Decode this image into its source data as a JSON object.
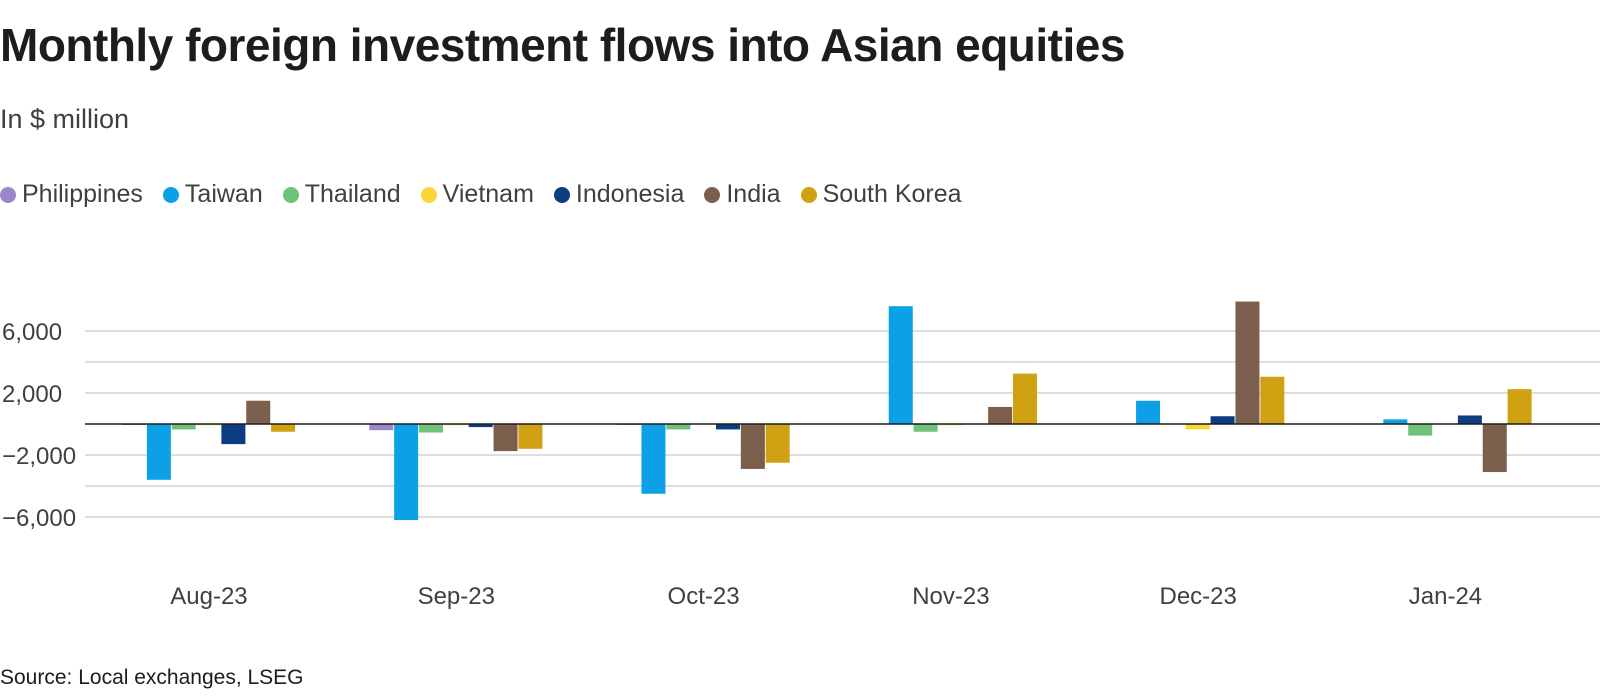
{
  "chart_data": {
    "type": "bar",
    "title": "Monthly foreign investment flows into Asian equities",
    "subtitle": "In $ million",
    "source": "Source: Local exchanges, LSEG",
    "xlabel": "",
    "ylabel": "",
    "ylim": [
      -9000,
      9000
    ],
    "gridlines": [
      -6000,
      -4000,
      -2000,
      0,
      2000,
      4000,
      6000
    ],
    "y_ticks": [
      {
        "value": 6000,
        "label": "6,000"
      },
      {
        "value": 2000,
        "label": "2,000"
      },
      {
        "value": -2000,
        "label": "−2,000"
      },
      {
        "value": -6000,
        "label": "−6,000"
      }
    ],
    "categories": [
      "Aug-23",
      "Sep-23",
      "Oct-23",
      "Nov-23",
      "Dec-23",
      "Jan-24"
    ],
    "series": [
      {
        "name": "Philippines",
        "color": "#9b87c9",
        "values": [
          -60,
          -400,
          -60,
          0,
          0,
          30
        ]
      },
      {
        "name": "Taiwan",
        "color": "#0ca1e6",
        "values": [
          -3600,
          -6200,
          -4500,
          7600,
          1500,
          300
        ]
      },
      {
        "name": "Thailand",
        "color": "#6fc27a",
        "values": [
          -350,
          -550,
          -350,
          -500,
          0,
          -750
        ]
      },
      {
        "name": "Vietnam",
        "color": "#fcd637",
        "values": [
          -80,
          -80,
          0,
          -80,
          -350,
          0
        ]
      },
      {
        "name": "Indonesia",
        "color": "#0c3d82",
        "values": [
          -1300,
          -200,
          -350,
          0,
          500,
          550
        ]
      },
      {
        "name": "India",
        "color": "#7b5f4c",
        "values": [
          1500,
          -1750,
          -2900,
          1100,
          7900,
          -3100
        ]
      },
      {
        "name": "South Korea",
        "color": "#d1a114",
        "values": [
          -500,
          -1600,
          -2500,
          3250,
          3050,
          2250
        ]
      }
    ]
  }
}
